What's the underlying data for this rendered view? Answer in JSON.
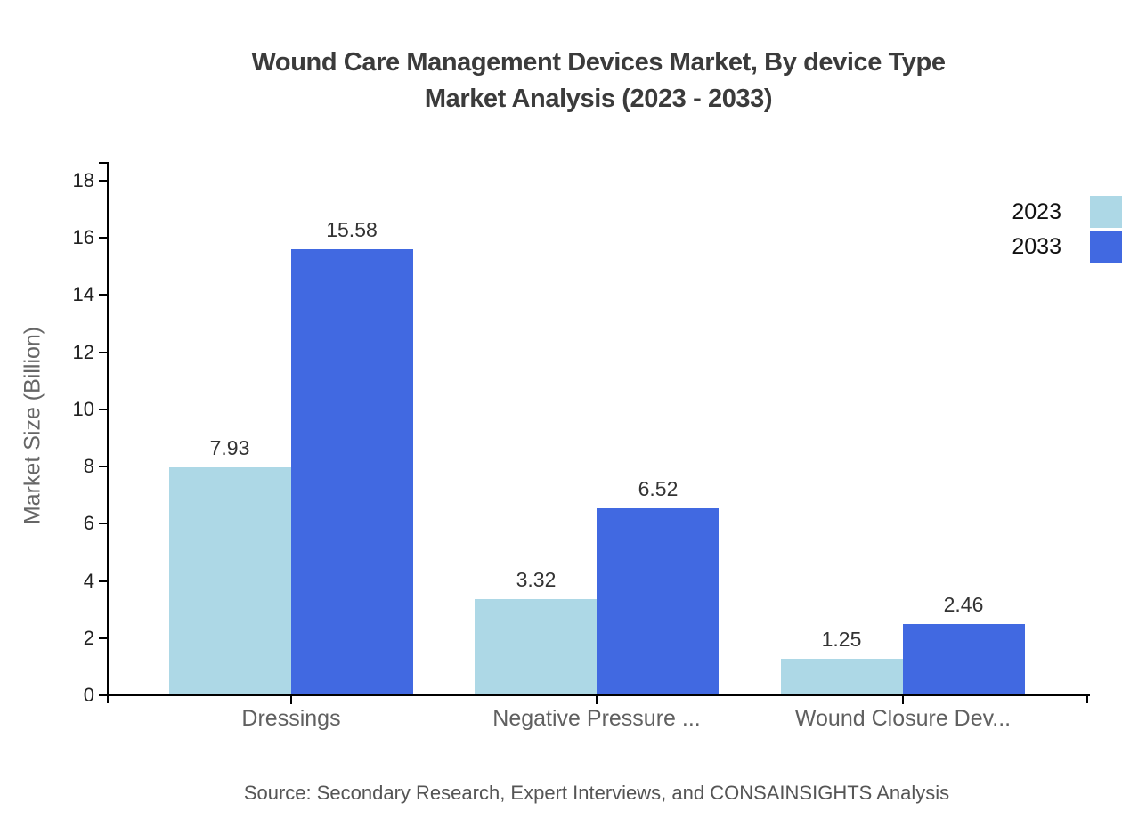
{
  "title": {
    "line1": "Wound Care Management Devices Market, By device Type",
    "line2": "Market Analysis (2023 - 2033)"
  },
  "y_axis_title": "Market Size (Billion)",
  "source": "Source: Secondary Research, Expert Interviews, and CONSAINSIGHTS Analysis",
  "chart_data": {
    "type": "bar",
    "categories": [
      "Dressings",
      "Negative Pressure ...",
      "Wound Closure Dev..."
    ],
    "series": [
      {
        "name": "2023",
        "color": "#ADD8E6",
        "values": [
          7.93,
          3.32,
          1.25
        ]
      },
      {
        "name": "2033",
        "color": "#4169E1",
        "values": [
          15.58,
          6.52,
          2.46
        ]
      }
    ],
    "ylabel": "Market Size (Billion)",
    "ylim": [
      0,
      18
    ],
    "y_ticks": [
      0,
      2,
      4,
      6,
      8,
      10,
      12,
      14,
      16,
      18
    ],
    "grid": false,
    "value_labels": true,
    "legend_position": "top-right",
    "axis_color": "#000000",
    "text_colors": {
      "title": "#3b3b3b",
      "value_label": "#333333",
      "category_label": "#606060",
      "source": "#555555"
    }
  }
}
